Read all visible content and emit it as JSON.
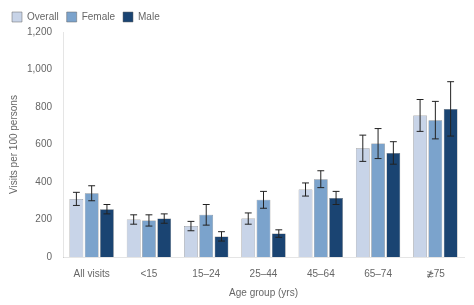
{
  "chart_data": {
    "type": "bar",
    "xlabel": "Age group (yrs)",
    "ylabel": "Visits per 100 persons",
    "categories": [
      "All visits",
      "<15",
      "15–24",
      "25–44",
      "45–64",
      "65–74",
      "≵75"
    ],
    "series": [
      {
        "name": "Overall",
        "color": "#c8d4e8",
        "values": [
          310,
          200,
          165,
          205,
          360,
          580,
          755
        ],
        "errors": [
          35,
          25,
          25,
          30,
          35,
          70,
          85
        ]
      },
      {
        "name": "Female",
        "color": "#7ba3cc",
        "values": [
          340,
          195,
          225,
          305,
          415,
          605,
          730
        ],
        "errors": [
          40,
          30,
          55,
          45,
          45,
          80,
          100
        ]
      },
      {
        "name": "Male",
        "color": "#1a4472",
        "values": [
          255,
          205,
          110,
          125,
          315,
          555,
          790
        ],
        "errors": [
          25,
          25,
          25,
          20,
          35,
          60,
          145
        ]
      }
    ],
    "ylim": [
      0,
      1200
    ],
    "yticks": [
      0,
      200,
      400,
      600,
      800,
      {
        "value": 1000,
        "label": "1,000"
      },
      {
        "value": 1200,
        "label": "1,200"
      }
    ],
    "grid": false,
    "legend": "upper left"
  }
}
